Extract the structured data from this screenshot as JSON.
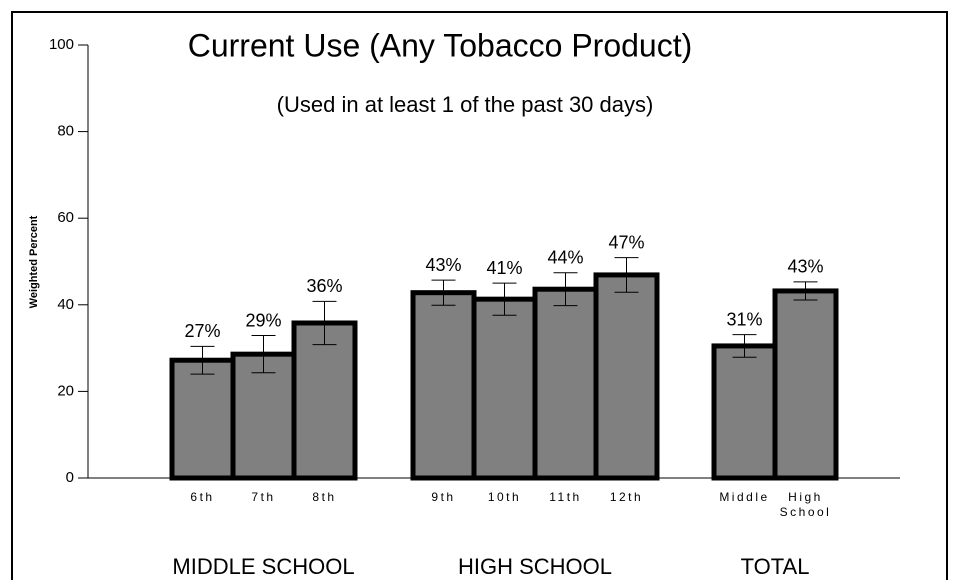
{
  "chart_data": {
    "type": "bar",
    "title": "Current Use (Any Tobacco Product)",
    "subtitle": "(Used in at least 1 of the past 30 days)",
    "y_label": "Weighted Percent",
    "color": "#808080",
    "ylim": [
      0,
      100
    ],
    "yticks": [
      0,
      20,
      40,
      60,
      80,
      100
    ],
    "groups": [
      {
        "name": "MIDDLE SCHOOL",
        "categories": [
          "6th",
          "7th",
          "8th"
        ],
        "values": [
          27.2,
          28.6,
          35.8
        ],
        "value_labels": [
          "27%",
          "29%",
          "36%"
        ],
        "errors": [
          3.2,
          4.3,
          5
        ]
      },
      {
        "name": "HIGH SCHOOL",
        "categories": [
          "9th",
          "10th",
          "11th",
          "12th"
        ],
        "values": [
          42.8,
          41.3,
          43.6,
          46.9
        ],
        "value_labels": [
          "43%",
          "41%",
          "44%",
          "47%"
        ],
        "errors": [
          2.9,
          3.7,
          3.8,
          4
        ]
      },
      {
        "name": "TOTAL",
        "categories": [
          "Middle",
          "High School"
        ],
        "values": [
          30.5,
          43.2
        ],
        "value_labels": [
          "31%",
          "43%"
        ],
        "errors": [
          2.6,
          2.1
        ]
      }
    ]
  }
}
